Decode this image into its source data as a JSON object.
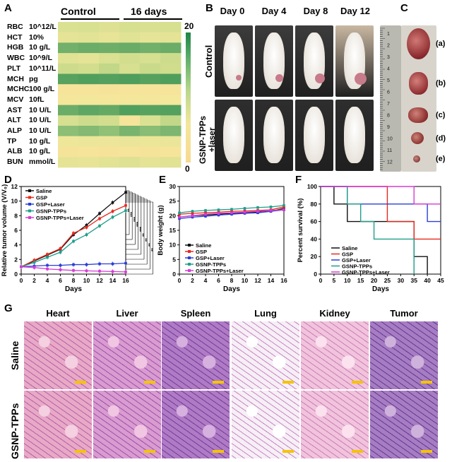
{
  "panels": {
    "A": "A",
    "B": "B",
    "C": "C",
    "D": "D",
    "E": "E",
    "F": "F",
    "G": "G"
  },
  "heatmap": {
    "group_labels": [
      "Control",
      "16 days"
    ],
    "colorbar": {
      "max": "20",
      "min": "0"
    },
    "rows": [
      {
        "name": "RBC",
        "unit": "10^12/L",
        "values": [
          7.5,
          7.8,
          7.2,
          8.0,
          7.6,
          7.9
        ]
      },
      {
        "name": "HCT",
        "unit": "10%",
        "values": [
          6.5,
          6.8,
          6.2,
          7.0,
          6.4,
          6.6
        ]
      },
      {
        "name": "HGB",
        "unit": "10 g/L",
        "values": [
          13.5,
          14.0,
          13.8,
          14.2,
          13.6,
          14.1
        ]
      },
      {
        "name": "WBC",
        "unit": "10^9/L",
        "values": [
          7.0,
          6.5,
          7.5,
          8.5,
          8.0,
          9.0
        ]
      },
      {
        "name": "PLT",
        "unit": "10^11/L",
        "values": [
          9.0,
          8.5,
          9.5,
          8.0,
          9.2,
          8.7
        ]
      },
      {
        "name": "MCH",
        "unit": "pg",
        "values": [
          15.5,
          16.0,
          15.8,
          16.2,
          15.6,
          16.1
        ]
      },
      {
        "name": "MCHC",
        "unit": "100 g/L",
        "values": [
          3.2,
          3.3,
          3.1,
          3.4,
          3.2,
          3.3
        ]
      },
      {
        "name": "MCV",
        "unit": "10fL",
        "values": [
          4.5,
          4.7,
          4.4,
          4.6,
          4.5,
          4.8
        ]
      },
      {
        "name": "AST",
        "unit": "10 U/L",
        "values": [
          14.0,
          15.0,
          14.5,
          16.0,
          15.5,
          15.8
        ]
      },
      {
        "name": "ALT",
        "unit": "10 U/L",
        "values": [
          8.0,
          9.0,
          8.5,
          3.5,
          7.5,
          9.5
        ]
      },
      {
        "name": "ALP",
        "unit": "10 U/L",
        "values": [
          12.0,
          12.5,
          11.8,
          13.0,
          12.2,
          12.8
        ]
      },
      {
        "name": "TP",
        "unit": "10 g/L",
        "values": [
          5.5,
          5.8,
          5.6,
          6.0,
          5.7,
          5.9
        ]
      },
      {
        "name": "ALB",
        "unit": "10 g/L",
        "values": [
          3.0,
          3.2,
          2.8,
          3.4,
          3.1,
          3.3
        ]
      },
      {
        "name": "BUN",
        "unit": "mmol/L",
        "values": [
          6.5,
          6.2,
          6.8,
          7.2,
          6.6,
          6.9
        ]
      }
    ]
  },
  "photos_b": {
    "days": [
      "Day 0",
      "Day 4",
      "Day 8",
      "Day 12"
    ],
    "row_labels": [
      "Control",
      "GSNP-TPPs\n+laser"
    ]
  },
  "tumors_c": {
    "labels": [
      "(a)",
      "(b)",
      "(c)",
      "(d)",
      "(e)"
    ],
    "ruler_numbers": [
      "1",
      "2",
      "3",
      "4",
      "5",
      "6",
      "7",
      "8",
      "9",
      "10",
      "11",
      "12"
    ]
  },
  "chart_data": [
    {
      "panel": "D",
      "type": "line",
      "xlabel": "Days",
      "ylabel": "Relative tumor volume (V/V₀)",
      "xlim": [
        0,
        16
      ],
      "ylim": [
        0,
        12
      ],
      "xticks": [
        "0",
        "2",
        "4",
        "6",
        "8",
        "10",
        "12",
        "14",
        "16"
      ],
      "yticks": [
        "0",
        "2",
        "4",
        "6",
        "8",
        "10",
        "12"
      ],
      "x": [
        0,
        2,
        4,
        6,
        8,
        10,
        12,
        14,
        16
      ],
      "series": [
        {
          "name": "Saline",
          "color": "#111111",
          "values": [
            1.0,
            1.8,
            2.6,
            3.4,
            5.4,
            6.7,
            8.3,
            9.8,
            11.2
          ]
        },
        {
          "name": "GSP",
          "color": "#e8291c",
          "values": [
            1.0,
            1.9,
            2.7,
            3.5,
            5.6,
            6.4,
            7.6,
            8.6,
            9.4
          ]
        },
        {
          "name": "GSP+Laser",
          "color": "#2a3fd6",
          "values": [
            1.0,
            1.1,
            1.2,
            1.2,
            1.3,
            1.3,
            1.4,
            1.4,
            1.5
          ]
        },
        {
          "name": "GSNP-TPPs",
          "color": "#1f9e8a",
          "values": [
            1.0,
            1.6,
            2.3,
            3.0,
            4.5,
            5.4,
            6.6,
            7.8,
            8.7
          ]
        },
        {
          "name": "GSNP-TPPs+Laser",
          "color": "#d63ad6",
          "values": [
            1.0,
            0.9,
            0.7,
            0.6,
            0.5,
            0.45,
            0.4,
            0.35,
            0.3
          ]
        }
      ],
      "significance": [
        "**",
        "***",
        "***",
        "***",
        "***",
        "**",
        "**",
        "**",
        "**"
      ]
    },
    {
      "panel": "E",
      "type": "line",
      "xlabel": "Days",
      "ylabel": "Body weight (g)",
      "xlim": [
        0,
        16
      ],
      "ylim": [
        0,
        30
      ],
      "xticks": [
        "0",
        "2",
        "4",
        "6",
        "8",
        "10",
        "12",
        "14",
        "16"
      ],
      "yticks": [
        "0",
        "5",
        "10",
        "15",
        "20",
        "25",
        "30"
      ],
      "x": [
        0,
        2,
        4,
        6,
        8,
        10,
        12,
        14,
        16
      ],
      "series": [
        {
          "name": "Saline",
          "color": "#111111",
          "values": [
            19.5,
            20.0,
            20.2,
            20.5,
            20.8,
            21.0,
            21.2,
            21.5,
            22.5
          ]
        },
        {
          "name": "GSP",
          "color": "#e8291c",
          "values": [
            20.5,
            20.8,
            21.0,
            21.2,
            21.5,
            21.6,
            21.8,
            22.0,
            23.0
          ]
        },
        {
          "name": "GSP+Laser",
          "color": "#2a3fd6",
          "values": [
            19.0,
            19.5,
            19.8,
            20.2,
            20.5,
            20.8,
            21.0,
            21.5,
            22.0
          ]
        },
        {
          "name": "GSNP-TPPs",
          "color": "#1f9e8a",
          "values": [
            21.0,
            21.5,
            21.8,
            22.0,
            22.2,
            22.5,
            22.8,
            23.0,
            23.5
          ]
        },
        {
          "name": "GSNP-TPPs+Laser",
          "color": "#d63ad6",
          "values": [
            19.5,
            20.0,
            20.5,
            20.8,
            21.0,
            21.2,
            21.5,
            21.8,
            22.0
          ]
        }
      ]
    },
    {
      "panel": "F",
      "type": "line",
      "xlabel": "Days",
      "ylabel": "Percent survival (%)",
      "xlim": [
        0,
        45
      ],
      "ylim": [
        0,
        100
      ],
      "xticks": [
        "0",
        "5",
        "10",
        "15",
        "20",
        "25",
        "30",
        "35",
        "40",
        "45"
      ],
      "yticks": [
        "0",
        "20",
        "40",
        "60",
        "80",
        "100"
      ],
      "series": [
        {
          "name": "Saline",
          "color": "#111111",
          "steps": [
            [
              0,
              100
            ],
            [
              5,
              80
            ],
            [
              10,
              60
            ],
            [
              15,
              60
            ],
            [
              35,
              20
            ],
            [
              40,
              0
            ]
          ]
        },
        {
          "name": "GSP",
          "color": "#e8291c",
          "steps": [
            [
              0,
              100
            ],
            [
              15,
              100
            ],
            [
              25,
              60
            ],
            [
              35,
              40
            ],
            [
              45,
              40
            ]
          ]
        },
        {
          "name": "GSP+Laser",
          "color": "#2a3fd6",
          "steps": [
            [
              0,
              100
            ],
            [
              10,
              80
            ],
            [
              40,
              60
            ],
            [
              45,
              60
            ]
          ]
        },
        {
          "name": "GSNP-TPPs",
          "color": "#1f9e8a",
          "steps": [
            [
              0,
              100
            ],
            [
              10,
              80
            ],
            [
              15,
              60
            ],
            [
              20,
              40
            ],
            [
              35,
              0
            ]
          ]
        },
        {
          "name": "GSNP-TPPs+Laser",
          "color": "#d63ad6",
          "steps": [
            [
              0,
              100
            ],
            [
              35,
              100
            ],
            [
              35,
              80
            ],
            [
              45,
              80
            ]
          ]
        }
      ]
    }
  ],
  "histology": {
    "columns": [
      "Heart",
      "Liver",
      "Spleen",
      "Lung",
      "Kidney",
      "Tumor"
    ],
    "rows": [
      "Saline",
      "GSNP-TPPs"
    ]
  }
}
